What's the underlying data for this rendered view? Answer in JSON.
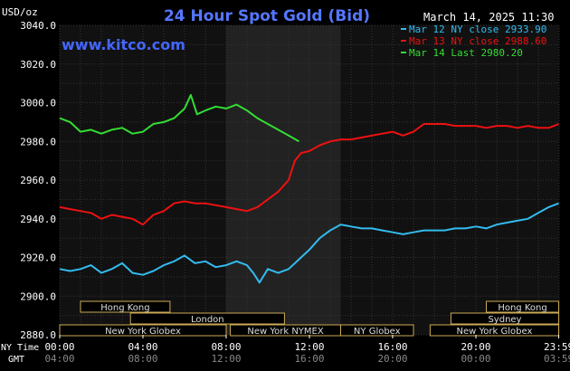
{
  "chart_data": {
    "type": "line",
    "title": "24 Hour Spot Gold (Bid)",
    "subtitle": "",
    "ylabel": "USD/oz",
    "date": "March 14, 2025 11:30",
    "watermark": "www.kitco.com",
    "ylim": [
      2880,
      3040
    ],
    "xlim": [
      0,
      24
    ],
    "yticks": [
      2880,
      2900,
      2920,
      2940,
      2960,
      2980,
      3000,
      3020,
      3040
    ],
    "ytick_labels": [
      "2880.0",
      "2900.0",
      "2920.0",
      "2940.0",
      "2960.0",
      "2980.0",
      "3000.0",
      "3020.0",
      "3040.0"
    ],
    "xticks_ny": [
      "00:00",
      "04:00",
      "08:00",
      "12:00",
      "16:00",
      "20:00",
      "23:59"
    ],
    "xticks_gmt": [
      "04:00",
      "08:00",
      "12:00",
      "16:00",
      "20:00",
      "00:00",
      "03:59"
    ],
    "xtick_hours": [
      0,
      4,
      8,
      12,
      16,
      20,
      23.98
    ],
    "row_label_ny": "NY Time",
    "row_label_gmt": "GMT",
    "highlight_band_hours": [
      8,
      13.5
    ],
    "grid": true,
    "legend_position": "top-right",
    "series": [
      {
        "name": "Mar 12 NY close 2933.90",
        "color": "#33bbee",
        "x": [
          0,
          0.5,
          1,
          1.5,
          2,
          2.5,
          3,
          3.5,
          4,
          4.5,
          5,
          5.5,
          6,
          6.5,
          7,
          7.5,
          8,
          8.5,
          9,
          9.3,
          9.6,
          10,
          10.5,
          11,
          11.5,
          12,
          12.5,
          13,
          13.5,
          14,
          14.5,
          15,
          15.5,
          16,
          16.5,
          17,
          17.5,
          18,
          18.5,
          19,
          19.5,
          20,
          20.5,
          21,
          21.5,
          22,
          22.5,
          23,
          23.5,
          23.98
        ],
        "y": [
          2914,
          2913,
          2914,
          2916,
          2912,
          2914,
          2917,
          2912,
          2911,
          2913,
          2916,
          2918,
          2921,
          2917,
          2918,
          2915,
          2916,
          2918,
          2916,
          2912,
          2907,
          2914,
          2912,
          2914,
          2919,
          2924,
          2930,
          2934,
          2937,
          2936,
          2935,
          2935,
          2934,
          2933,
          2932,
          2933,
          2934,
          2934,
          2934,
          2935,
          2935,
          2936,
          2935,
          2937,
          2938,
          2939,
          2940,
          2943,
          2946,
          2948
        ]
      },
      {
        "name": "Mar 13 NY close 2988.60",
        "color": "#ee1111",
        "x": [
          0,
          0.5,
          1,
          1.5,
          2,
          2.5,
          3,
          3.5,
          4,
          4.5,
          5,
          5.5,
          6,
          6.5,
          7,
          7.5,
          8,
          8.5,
          9,
          9.5,
          10,
          10.5,
          11,
          11.3,
          11.6,
          12,
          12.5,
          13,
          13.5,
          14,
          14.5,
          15,
          15.5,
          16,
          16.5,
          17,
          17.5,
          18,
          18.5,
          19,
          19.5,
          20,
          20.5,
          21,
          21.5,
          22,
          22.5,
          23,
          23.5,
          23.98
        ],
        "y": [
          2946,
          2945,
          2944,
          2943,
          2940,
          2942,
          2941,
          2940,
          2937,
          2942,
          2944,
          2948,
          2949,
          2948,
          2948,
          2947,
          2946,
          2945,
          2944,
          2946,
          2950,
          2954,
          2960,
          2970,
          2974,
          2975,
          2978,
          2980,
          2981,
          2981,
          2982,
          2983,
          2984,
          2985,
          2983,
          2985,
          2989,
          2989,
          2989,
          2988,
          2988,
          2988,
          2987,
          2988,
          2988,
          2987,
          2988,
          2987,
          2987,
          2989
        ]
      },
      {
        "name": "Mar 14 Last 2980.20",
        "color": "#33dd33",
        "x": [
          0,
          0.5,
          1,
          1.5,
          2,
          2.5,
          3,
          3.5,
          4,
          4.5,
          5,
          5.5,
          6,
          6.3,
          6.6,
          7,
          7.5,
          8,
          8.5,
          9,
          9.5,
          10,
          10.5,
          11,
          11.5
        ],
        "y": [
          2992,
          2990,
          2985,
          2986,
          2984,
          2986,
          2987,
          2984,
          2985,
          2989,
          2990,
          2992,
          2997,
          3004,
          2994,
          2996,
          2998,
          2997,
          2999,
          2996,
          2992,
          2989,
          2986,
          2983,
          2980
        ]
      }
    ]
  },
  "sessions": [
    {
      "label": "Hong Kong",
      "start": 1,
      "end": 5.3,
      "row": 0
    },
    {
      "label": "London",
      "start": 3.4,
      "end": 10.8,
      "row": 1
    },
    {
      "label": "New York Globex",
      "start": 0,
      "end": 8,
      "row": 2
    },
    {
      "label": "New York NYMEX",
      "start": 8.2,
      "end": 13.5,
      "row": 2
    },
    {
      "label": "NY Globex",
      "start": 13.5,
      "end": 17,
      "row": 2
    },
    {
      "label": "Hong Kong",
      "start": 20.5,
      "end": 23.98,
      "row": 0
    },
    {
      "label": "Sydney",
      "start": 18.8,
      "end": 23.98,
      "row": 1
    },
    {
      "label": "New York Globex",
      "start": 17.8,
      "end": 23.98,
      "row": 2
    }
  ]
}
